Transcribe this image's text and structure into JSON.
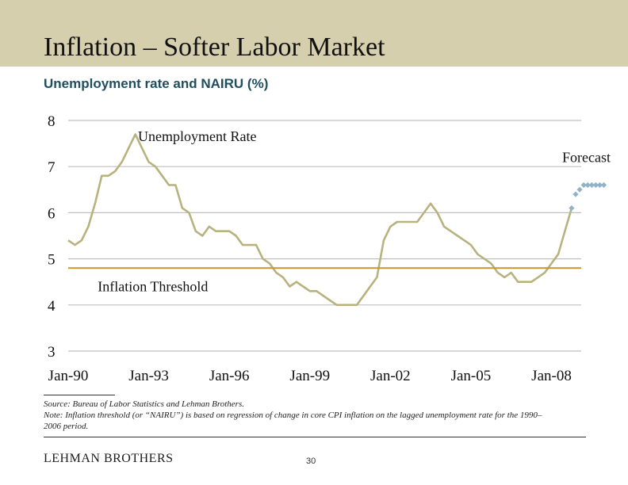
{
  "slide": {
    "title": "Inflation – Softer Labor Market",
    "subtitle": "Unemployment rate and NAIRU (%)",
    "source": "Source: Bureau of Labor Statistics and Lehman Brothers.",
    "note": "Note: Inflation threshold (or “NAIRU”) is based on regression of change in core CPI inflation on the lagged unemployment rate for the 1990–2006 period.",
    "logo": "LEHMAN BROTHERS",
    "page_number": "30"
  },
  "colors": {
    "header_band": "#d6cfae",
    "subtitle": "#1f4e5f",
    "unemployment_line": "#b8b27e",
    "nairu_line": "#c8962e",
    "forecast_markers": "#8fb3c8",
    "gridline": "#bfbfbf"
  },
  "chart_data": {
    "type": "line",
    "title": "Unemployment rate and NAIRU (%)",
    "xlim": [
      1990.0,
      2009.25
    ],
    "ylim": [
      3,
      8
    ],
    "yticks": [
      "3",
      "4",
      "5",
      "6",
      "7",
      "8"
    ],
    "xticks": [
      {
        "label": "Jan-90",
        "x": 1990
      },
      {
        "label": "Jan-93",
        "x": 1993
      },
      {
        "label": "Jan-96",
        "x": 1996
      },
      {
        "label": "Jan-99",
        "x": 1999
      },
      {
        "label": "Jan-02",
        "x": 2002
      },
      {
        "label": "Jan-05",
        "x": 2005
      },
      {
        "label": "Jan-08",
        "x": 2008
      }
    ],
    "grid": "horizontal",
    "annotations": [
      {
        "text": "Unemployment Rate",
        "x": 1992.6,
        "y": 7.55
      },
      {
        "text": "Forecast",
        "x": 2008.4,
        "y": 7.1
      },
      {
        "text": "Inflation Threshold",
        "x": 1991.1,
        "y": 4.3
      }
    ],
    "series": [
      {
        "name": "Unemployment Rate",
        "style": "line",
        "points": [
          [
            1990.0,
            5.4
          ],
          [
            1990.25,
            5.3
          ],
          [
            1990.5,
            5.4
          ],
          [
            1990.75,
            5.7
          ],
          [
            1991.0,
            6.2
          ],
          [
            1991.25,
            6.8
          ],
          [
            1991.5,
            6.8
          ],
          [
            1991.75,
            6.9
          ],
          [
            1992.0,
            7.1
          ],
          [
            1992.25,
            7.4
          ],
          [
            1992.5,
            7.7
          ],
          [
            1992.75,
            7.4
          ],
          [
            1993.0,
            7.1
          ],
          [
            1993.25,
            7.0
          ],
          [
            1993.5,
            6.8
          ],
          [
            1993.75,
            6.6
          ],
          [
            1994.0,
            6.6
          ],
          [
            1994.25,
            6.1
          ],
          [
            1994.5,
            6.0
          ],
          [
            1994.75,
            5.6
          ],
          [
            1995.0,
            5.5
          ],
          [
            1995.25,
            5.7
          ],
          [
            1995.5,
            5.6
          ],
          [
            1995.75,
            5.6
          ],
          [
            1996.0,
            5.6
          ],
          [
            1996.25,
            5.5
          ],
          [
            1996.5,
            5.3
          ],
          [
            1996.75,
            5.3
          ],
          [
            1997.0,
            5.3
          ],
          [
            1997.25,
            5.0
          ],
          [
            1997.5,
            4.9
          ],
          [
            1997.75,
            4.7
          ],
          [
            1998.0,
            4.6
          ],
          [
            1998.25,
            4.4
          ],
          [
            1998.5,
            4.5
          ],
          [
            1998.75,
            4.4
          ],
          [
            1999.0,
            4.3
          ],
          [
            1999.25,
            4.3
          ],
          [
            1999.5,
            4.2
          ],
          [
            1999.75,
            4.1
          ],
          [
            2000.0,
            4.0
          ],
          [
            2000.25,
            4.0
          ],
          [
            2000.5,
            4.0
          ],
          [
            2000.75,
            4.0
          ],
          [
            2001.0,
            4.2
          ],
          [
            2001.25,
            4.4
          ],
          [
            2001.5,
            4.6
          ],
          [
            2001.75,
            5.4
          ],
          [
            2002.0,
            5.7
          ],
          [
            2002.25,
            5.8
          ],
          [
            2002.5,
            5.8
          ],
          [
            2002.75,
            5.8
          ],
          [
            2003.0,
            5.8
          ],
          [
            2003.25,
            6.0
          ],
          [
            2003.5,
            6.2
          ],
          [
            2003.75,
            6.0
          ],
          [
            2004.0,
            5.7
          ],
          [
            2004.25,
            5.6
          ],
          [
            2004.5,
            5.5
          ],
          [
            2004.75,
            5.4
          ],
          [
            2005.0,
            5.3
          ],
          [
            2005.25,
            5.1
          ],
          [
            2005.5,
            5.0
          ],
          [
            2005.75,
            4.9
          ],
          [
            2006.0,
            4.7
          ],
          [
            2006.25,
            4.6
          ],
          [
            2006.5,
            4.7
          ],
          [
            2006.75,
            4.5
          ],
          [
            2007.0,
            4.5
          ],
          [
            2007.25,
            4.5
          ],
          [
            2007.5,
            4.6
          ],
          [
            2007.75,
            4.7
          ],
          [
            2008.0,
            4.9
          ],
          [
            2008.25,
            5.1
          ],
          [
            2008.5,
            5.6
          ],
          [
            2008.75,
            6.1
          ]
        ]
      },
      {
        "name": "Inflation Threshold",
        "style": "flat",
        "points": [
          [
            1990.0,
            4.8
          ],
          [
            2009.25,
            4.8
          ]
        ]
      },
      {
        "name": "Forecast",
        "style": "markers",
        "points": [
          [
            2008.75,
            6.1
          ],
          [
            2008.9,
            6.4
          ],
          [
            2009.05,
            6.5
          ],
          [
            2009.2,
            6.6
          ],
          [
            2009.35,
            6.6
          ],
          [
            2009.5,
            6.6
          ],
          [
            2009.65,
            6.6
          ],
          [
            2009.8,
            6.6
          ],
          [
            2009.95,
            6.6
          ]
        ]
      }
    ]
  }
}
